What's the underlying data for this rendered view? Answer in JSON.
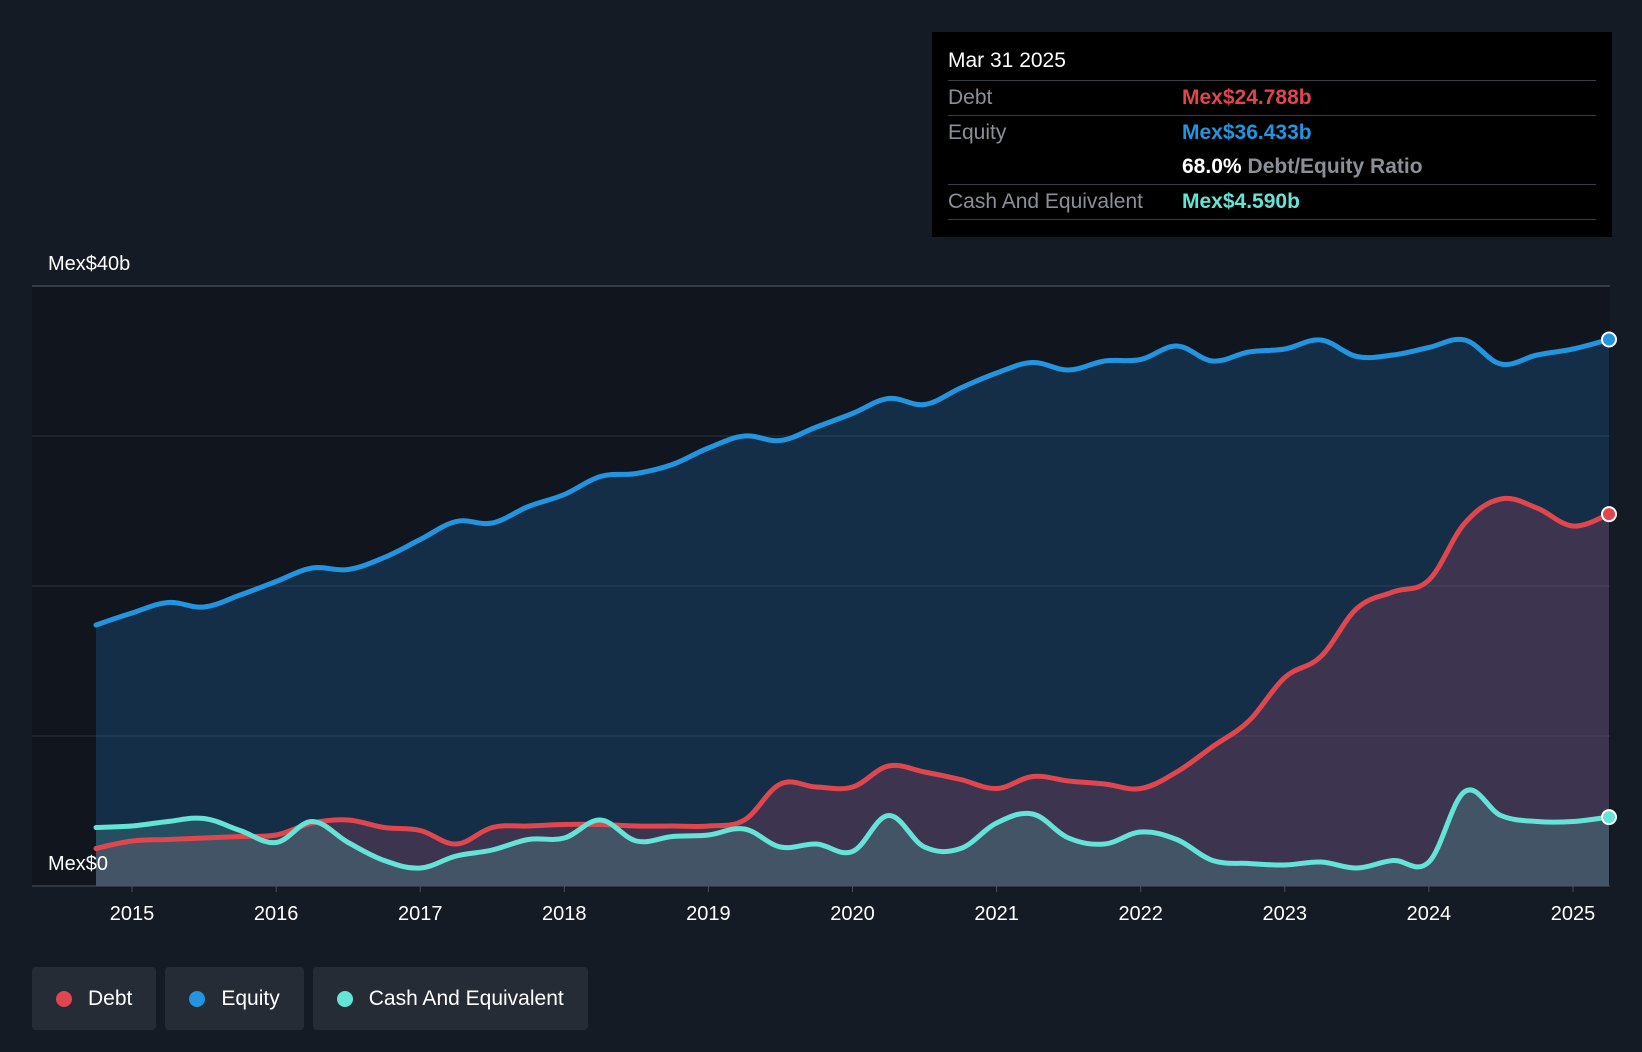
{
  "chart_data": {
    "type": "area",
    "ylabel_top": "Mex$40b",
    "ylabel_bottom": "Mex$0",
    "ylim": [
      0,
      40
    ],
    "xlim": [
      2014.75,
      2025.25
    ],
    "x_ticks": [
      "2015",
      "2016",
      "2017",
      "2018",
      "2019",
      "2020",
      "2021",
      "2022",
      "2023",
      "2024",
      "2025"
    ],
    "series": [
      {
        "name": "Equity",
        "color": "#2394e0",
        "x": [
          2014.75,
          2015.0,
          2015.25,
          2015.5,
          2015.75,
          2016.0,
          2016.25,
          2016.5,
          2016.75,
          2017.0,
          2017.25,
          2017.5,
          2017.75,
          2018.0,
          2018.25,
          2018.5,
          2018.75,
          2019.0,
          2019.25,
          2019.5,
          2019.75,
          2020.0,
          2020.25,
          2020.5,
          2020.75,
          2021.0,
          2021.25,
          2021.5,
          2021.75,
          2022.0,
          2022.25,
          2022.5,
          2022.75,
          2023.0,
          2023.25,
          2023.5,
          2023.75,
          2024.0,
          2024.25,
          2024.5,
          2024.75,
          2025.0,
          2025.25
        ],
        "values": [
          17.4,
          18.2,
          18.9,
          18.6,
          19.4,
          20.3,
          21.2,
          21.1,
          21.9,
          23.1,
          24.3,
          24.2,
          25.3,
          26.1,
          27.3,
          27.5,
          28.1,
          29.2,
          30.0,
          29.7,
          30.6,
          31.5,
          32.5,
          32.1,
          33.2,
          34.2,
          34.9,
          34.4,
          35.0,
          35.1,
          36.0,
          35.0,
          35.6,
          35.8,
          36.4,
          35.3,
          35.4,
          35.9,
          36.4,
          34.8,
          35.4,
          35.8,
          36.433
        ]
      },
      {
        "name": "Debt",
        "color": "#e0464e",
        "x": [
          2014.75,
          2015.0,
          2015.25,
          2015.5,
          2015.75,
          2016.0,
          2016.25,
          2016.5,
          2016.75,
          2017.0,
          2017.25,
          2017.5,
          2017.75,
          2018.0,
          2018.25,
          2018.5,
          2018.75,
          2019.0,
          2019.25,
          2019.5,
          2019.75,
          2020.0,
          2020.25,
          2020.5,
          2020.75,
          2021.0,
          2021.25,
          2021.5,
          2021.75,
          2022.0,
          2022.25,
          2022.5,
          2022.75,
          2023.0,
          2023.25,
          2023.5,
          2023.75,
          2024.0,
          2024.25,
          2024.5,
          2024.75,
          2025.0,
          2025.25
        ],
        "values": [
          2.5,
          3.0,
          3.1,
          3.2,
          3.3,
          3.4,
          4.2,
          4.4,
          3.9,
          3.7,
          2.8,
          3.9,
          4.0,
          4.1,
          4.1,
          4.0,
          4.0,
          4.0,
          4.4,
          6.8,
          6.6,
          6.6,
          8.0,
          7.6,
          7.1,
          6.5,
          7.3,
          7.0,
          6.8,
          6.5,
          7.6,
          9.3,
          11.0,
          13.9,
          15.3,
          18.5,
          19.6,
          20.4,
          24.2,
          25.8,
          25.2,
          24.0,
          24.788
        ]
      },
      {
        "name": "Cash And Equivalent",
        "color": "#65e3d6",
        "x": [
          2014.75,
          2015.0,
          2015.25,
          2015.5,
          2015.75,
          2016.0,
          2016.25,
          2016.5,
          2016.75,
          2017.0,
          2017.25,
          2017.5,
          2017.75,
          2018.0,
          2018.25,
          2018.5,
          2018.75,
          2019.0,
          2019.25,
          2019.5,
          2019.75,
          2020.0,
          2020.25,
          2020.5,
          2020.75,
          2021.0,
          2021.25,
          2021.5,
          2021.75,
          2022.0,
          2022.25,
          2022.5,
          2022.75,
          2023.0,
          2023.25,
          2023.5,
          2023.75,
          2024.0,
          2024.25,
          2024.5,
          2024.75,
          2025.0,
          2025.25
        ],
        "values": [
          3.9,
          4.0,
          4.3,
          4.5,
          3.7,
          2.9,
          4.3,
          2.9,
          1.7,
          1.2,
          2.0,
          2.4,
          3.1,
          3.2,
          4.4,
          3.0,
          3.3,
          3.4,
          3.8,
          2.6,
          2.8,
          2.3,
          4.7,
          2.6,
          2.5,
          4.2,
          4.8,
          3.2,
          2.8,
          3.6,
          3.1,
          1.7,
          1.5,
          1.4,
          1.6,
          1.2,
          1.7,
          1.6,
          6.3,
          4.7,
          4.3,
          4.3,
          4.59
        ]
      }
    ]
  },
  "tooltip": {
    "date": "Mar 31 2025",
    "debt_label": "Debt",
    "debt_value": "Mex$24.788b",
    "equity_label": "Equity",
    "equity_value": "Mex$36.433b",
    "ratio_value": "68.0%",
    "ratio_label": "Debt/Equity Ratio",
    "cash_label": "Cash And Equivalent",
    "cash_value": "Mex$4.590b"
  },
  "legend": {
    "debt": "Debt",
    "equity": "Equity",
    "cash": "Cash And Equivalent"
  },
  "colors": {
    "debt": "#e0464e",
    "equity": "#2394e0",
    "cash": "#65e3d6"
  }
}
